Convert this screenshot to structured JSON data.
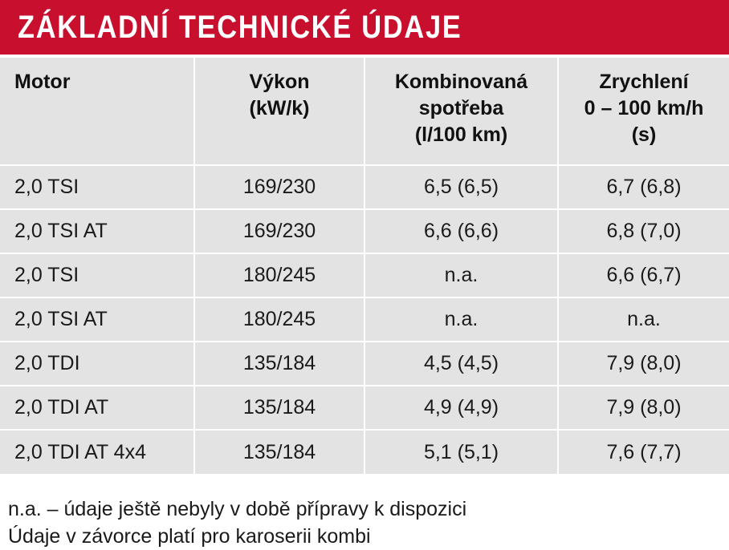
{
  "title": "ZÁKLADNÍ TECHNICKÉ ÚDAJE",
  "headers": {
    "motor": [
      "Motor"
    ],
    "power": [
      "Výkon",
      "(kW/k)"
    ],
    "consumption": [
      "Kombinovaná",
      "spotřeba",
      "(l/100 km)"
    ],
    "acceleration": [
      "Zrychlení",
      "0 – 100 km/h",
      "(s)"
    ]
  },
  "rows": [
    {
      "motor": "2,0 TSI",
      "power": "169/230",
      "consumption": "6,5 (6,5)",
      "acceleration": "6,7 (6,8)"
    },
    {
      "motor": "2,0 TSI AT",
      "power": "169/230",
      "consumption": "6,6 (6,6)",
      "acceleration": "6,8 (7,0)"
    },
    {
      "motor": "2,0 TSI",
      "power": "180/245",
      "consumption": "n.a.",
      "acceleration": "6,6 (6,7)"
    },
    {
      "motor": "2,0 TSI AT",
      "power": "180/245",
      "consumption": "n.a.",
      "acceleration": "n.a."
    },
    {
      "motor": "2,0 TDI",
      "power": "135/184",
      "consumption": "4,5 (4,5)",
      "acceleration": "7,9 (8,0)"
    },
    {
      "motor": "2,0 TDI AT",
      "power": "135/184",
      "consumption": "4,9 (4,9)",
      "acceleration": "7,9 (8,0)"
    },
    {
      "motor": "2,0 TDI AT 4x4",
      "power": "135/184",
      "consumption": "5,1 (5,1)",
      "acceleration": "7,6 (7,7)"
    }
  ],
  "notes": [
    "n.a. – údaje ještě nebyly v době přípravy k dispozici",
    "Údaje v závorce platí pro karoserii kombi"
  ],
  "colors": {
    "title_background": "#c8102e",
    "table_background": "#e3e3e3"
  }
}
